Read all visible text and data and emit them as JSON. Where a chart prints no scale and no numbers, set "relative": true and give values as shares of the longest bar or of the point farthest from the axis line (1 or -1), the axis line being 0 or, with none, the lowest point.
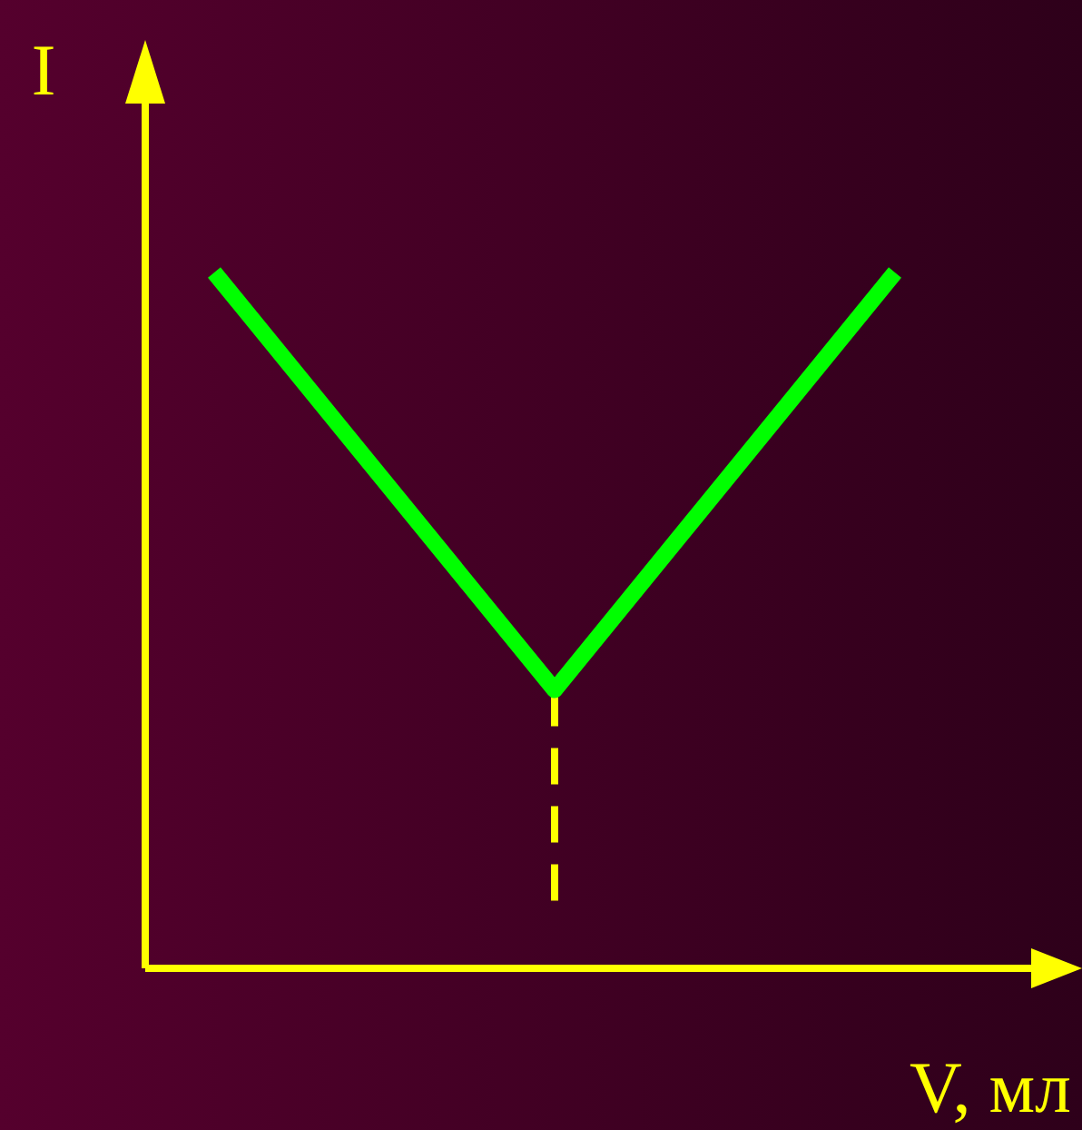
{
  "chart_data": {
    "type": "line",
    "relative": true,
    "xlabel": "V, мл",
    "ylabel": "I",
    "categories": [
      null,
      null,
      null
    ],
    "series": [
      {
        "color": "#00ff00",
        "values": [
          1,
          0.4,
          1
        ]
      }
    ],
    "marker": "none",
    "line_style": "solid"
  }
}
